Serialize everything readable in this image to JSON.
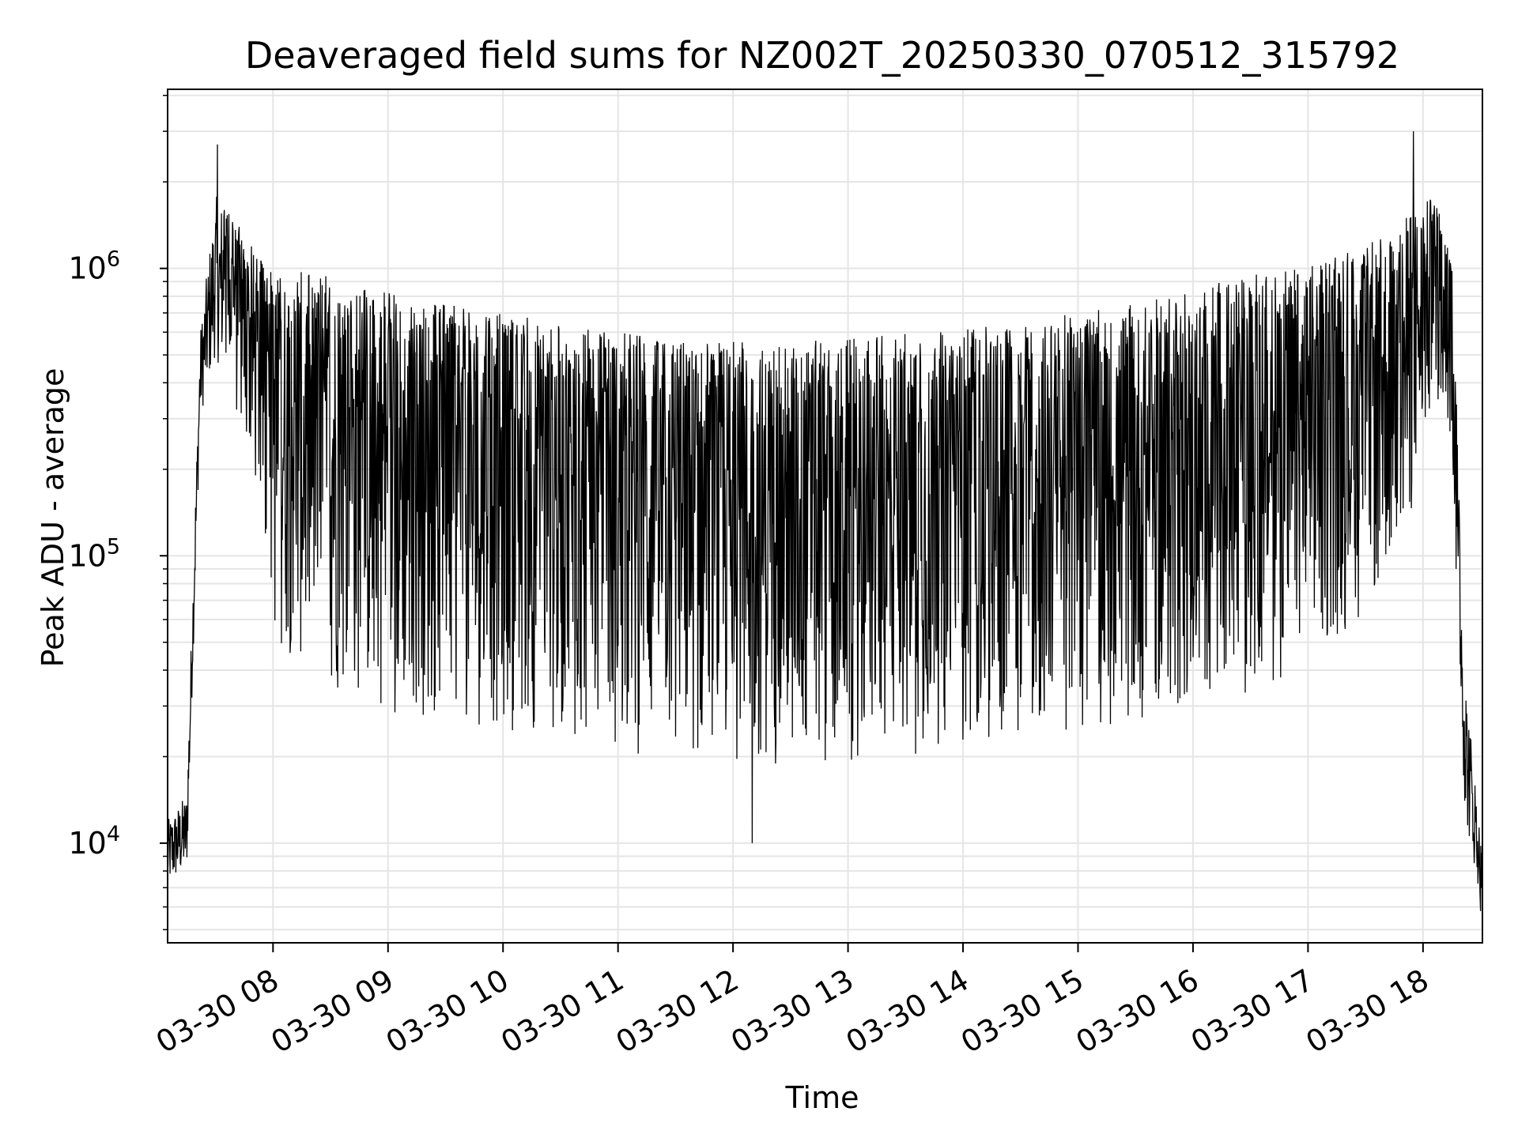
{
  "chart_data": {
    "type": "line",
    "title": "Deaveraged field sums for NZ002T_20250330_070512_315792",
    "xlabel": "Time",
    "ylabel": "Peak ADU - average",
    "x_tick_labels": [
      "03-30 08",
      "03-30 09",
      "03-30 10",
      "03-30 11",
      "03-30 12",
      "03-30 13",
      "03-30 14",
      "03-30 15",
      "03-30 16",
      "03-30 17",
      "03-30 18"
    ],
    "x_tick_times": [
      "2025-03-30T08:00",
      "2025-03-30T09:00",
      "2025-03-30T10:00",
      "2025-03-30T11:00",
      "2025-03-30T12:00",
      "2025-03-30T13:00",
      "2025-03-30T14:00",
      "2025-03-30T15:00",
      "2025-03-30T16:00",
      "2025-03-30T17:00",
      "2025-03-30T18:00"
    ],
    "xlim": [
      "2025-03-30T07:05",
      "2025-03-30T18:31"
    ],
    "y_scale": "log",
    "ylim": [
      4500,
      4200000
    ],
    "y_tick_values": [
      10000,
      100000,
      1000000
    ],
    "y_tick_labels": [
      {
        "base": "10",
        "exp": "4"
      },
      {
        "base": "10",
        "exp": "5"
      },
      {
        "base": "10",
        "exp": "6"
      }
    ],
    "grid": true,
    "line_color": "#000000",
    "grid_color": "#e5e5e5",
    "series": [
      {
        "envelope": {
          "description_times": [
            "2025-03-30T07:05",
            "2025-03-30T07:15",
            "2025-03-30T07:22",
            "2025-03-30T07:30",
            "2025-03-30T07:40",
            "2025-03-30T07:52",
            "2025-03-30T08:00",
            "2025-03-30T08:30",
            "2025-03-30T09:00",
            "2025-03-30T09:30",
            "2025-03-30T10:00",
            "2025-03-30T10:30",
            "2025-03-30T11:00",
            "2025-03-30T11:30",
            "2025-03-30T12:00",
            "2025-03-30T12:30",
            "2025-03-30T13:00",
            "2025-03-30T13:30",
            "2025-03-30T14:00",
            "2025-03-30T14:30",
            "2025-03-30T15:00",
            "2025-03-30T15:30",
            "2025-03-30T16:00",
            "2025-03-30T16:30",
            "2025-03-30T17:00",
            "2025-03-30T17:30",
            "2025-03-30T17:50",
            "2025-03-30T18:05",
            "2025-03-30T18:15",
            "2025-03-30T18:22",
            "2025-03-30T18:31"
          ],
          "low": [
            7000,
            8000,
            300000,
            500000,
            300000,
            150000,
            50000,
            32000,
            28000,
            25000,
            24000,
            22000,
            20000,
            19000,
            18500,
            18500,
            19000,
            20000,
            21000,
            22000,
            24000,
            26000,
            28000,
            32000,
            40000,
            60000,
            100000,
            300000,
            200000,
            12000,
            6000
          ],
          "high": [
            12000,
            15000,
            600000,
            1800000,
            1500000,
            1100000,
            1000000,
            950000,
            850000,
            750000,
            700000,
            650000,
            600000,
            580000,
            560000,
            560000,
            570000,
            600000,
            620000,
            650000,
            700000,
            750000,
            850000,
            950000,
            1050000,
            1200000,
            1500000,
            1800000,
            1200000,
            40000,
            9000
          ]
        },
        "peaks": [
          {
            "time": "2025-03-30T07:31",
            "value": 2700000
          },
          {
            "time": "2025-03-30T17:55",
            "value": 3000000
          },
          {
            "time": "2025-03-30T12:10",
            "value": 10000
          },
          {
            "time": "2025-03-30T18:30",
            "value": 5800
          }
        ]
      }
    ]
  }
}
